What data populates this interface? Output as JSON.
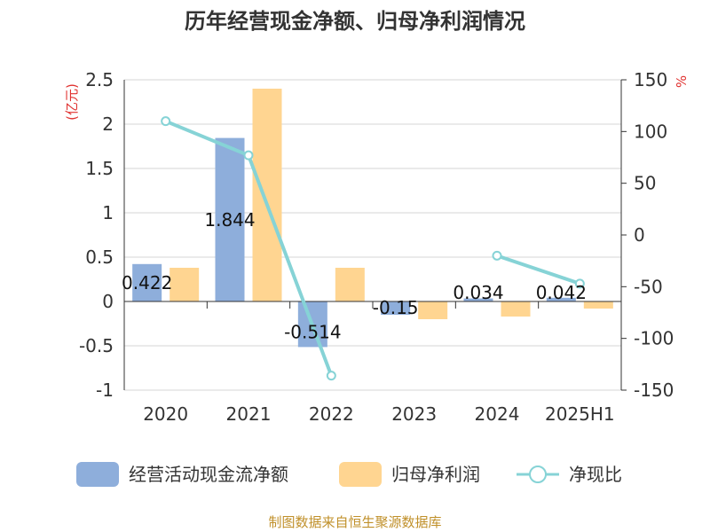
{
  "chart_data": {
    "type": "bar",
    "title": "历年经营现金净额、归母净利润情况",
    "left_unit": "(亿元)",
    "right_unit": "%",
    "categories": [
      "2020",
      "2021",
      "2022",
      "2023",
      "2024",
      "2025H1"
    ],
    "series": [
      {
        "name": "经营活动现金流净额",
        "type": "bar",
        "axis": "left",
        "color": "#8eaedb",
        "values": [
          0.422,
          1.844,
          -0.514,
          -0.15,
          0.034,
          0.042
        ],
        "labels": [
          "0.422",
          "1.844",
          "-0.514",
          "-0.15",
          "0.034",
          "0.042"
        ]
      },
      {
        "name": "归母净利润",
        "type": "bar",
        "axis": "left",
        "color": "#ffd591",
        "values": [
          0.38,
          2.4,
          0.38,
          -0.2,
          -0.17,
          -0.08
        ]
      },
      {
        "name": "净现比",
        "type": "line",
        "axis": "right",
        "color": "#86d3d6",
        "values": [
          110,
          77,
          -136,
          null,
          -20,
          -47
        ]
      }
    ],
    "left_ticks": [
      "2.5",
      "2",
      "1.5",
      "1",
      "0.5",
      "0",
      "-0.5",
      "-1"
    ],
    "right_ticks": [
      "150",
      "100",
      "50",
      "0",
      "-50",
      "-100",
      "-150"
    ],
    "ylim_left": [
      -1,
      2.5
    ],
    "ylim_right": [
      -150,
      150
    ],
    "grid": true,
    "legend_position": "bottom"
  },
  "source": "制图数据来自恒生聚源数据库"
}
